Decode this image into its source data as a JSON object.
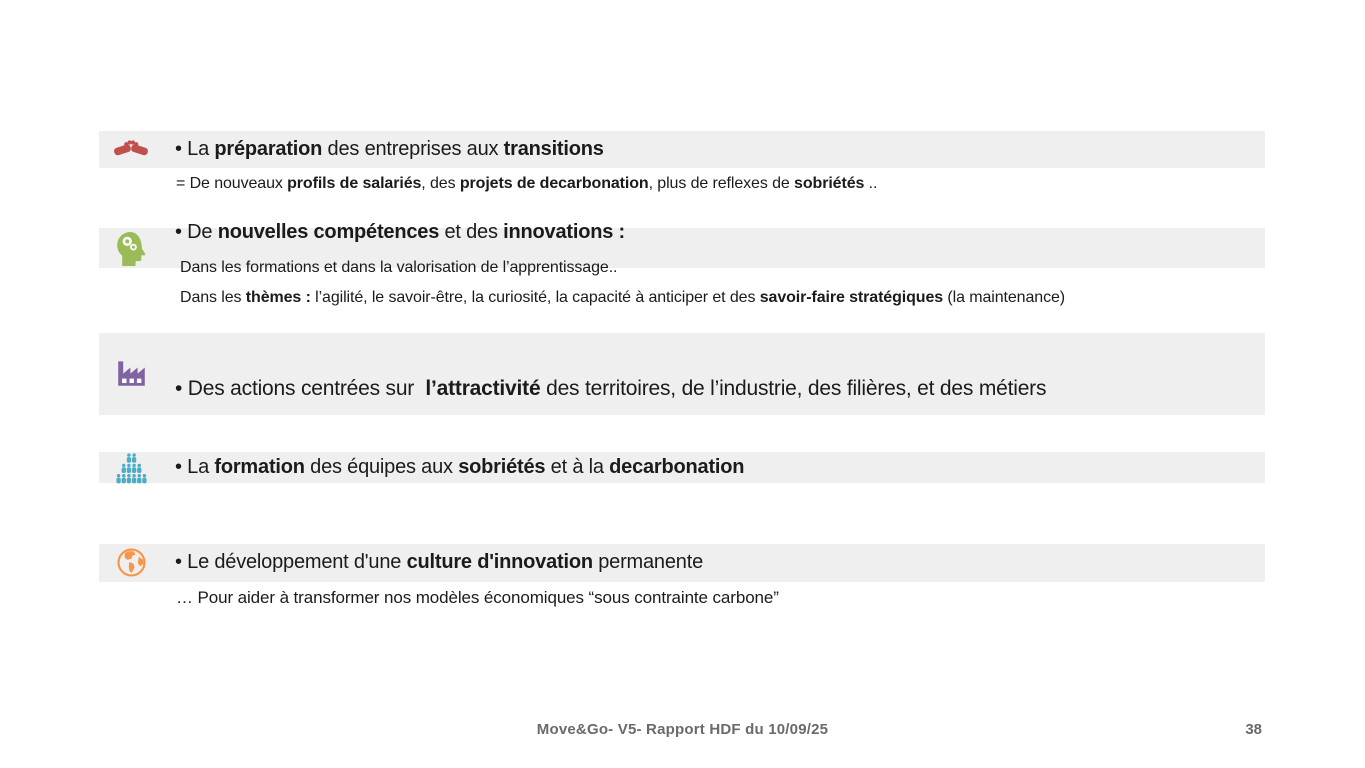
{
  "slide": {
    "background": "#ffffff",
    "band_color": "#efefef",
    "groups": [
      {
        "name": "preparation-transitions",
        "icon": "handshake-icon",
        "icon_color": "#c0504d",
        "heading": [
          {
            "t": "• La ",
            "b": false
          },
          {
            "t": "préparation",
            "b": true
          },
          {
            "t": " des entreprises aux ",
            "b": false
          },
          {
            "t": "transitions",
            "b": true
          }
        ],
        "sublines": {
          "line1": [
            {
              "t": "= De nouveaux ",
              "b": false
            },
            {
              "t": "profils de salariés",
              "b": true
            },
            {
              "t": ", des ",
              "b": false
            },
            {
              "t": "projets de decarbonation",
              "b": true
            },
            {
              "t": ", plus de reflexes de ",
              "b": false
            },
            {
              "t": "sobriétés",
              "b": true
            },
            {
              "t": " ..",
              "b": false
            }
          ]
        }
      },
      {
        "name": "competences-innovations",
        "icon": "head-gears-icon",
        "icon_color": "#9bbb59",
        "heading": [
          {
            "t": "• De ",
            "b": false
          },
          {
            "t": "nouvelles compétences",
            "b": true
          },
          {
            "t": " et des ",
            "b": false
          },
          {
            "t": "innovations :",
            "b": true
          }
        ],
        "sublines": {
          "line1": [
            {
              "t": "Dans les formations et dans la valorisation de l’apprentissage..",
              "b": false
            }
          ],
          "line2": [
            {
              "t": "Dans les ",
              "b": false
            },
            {
              "t": "thèmes :",
              "b": true
            },
            {
              "t": " l’agilité, le savoir-être, la curiosité, la capacité à anticiper et des ",
              "b": false
            },
            {
              "t": "savoir-faire stratégiques",
              "b": true
            },
            {
              "t": " (la maintenance)",
              "b": false
            }
          ]
        }
      },
      {
        "name": "attractivite-territoires",
        "icon": "factory-icon",
        "icon_color": "#8064a2",
        "heading": [
          {
            "t": "• Des actions centrées sur  ",
            "b": false
          },
          {
            "t": "l’attractivité",
            "b": true
          },
          {
            "t": " des territoires, de l’industrie, des filières, et des métiers",
            "b": false
          }
        ]
      },
      {
        "name": "formation-equipes",
        "icon": "crowd-icon",
        "icon_color": "#4bacc6",
        "heading": [
          {
            "t": "• La ",
            "b": false
          },
          {
            "t": "formation",
            "b": true
          },
          {
            "t": " des équipes aux ",
            "b": false
          },
          {
            "t": "sobriétés",
            "b": true
          },
          {
            "t": " et à la ",
            "b": false
          },
          {
            "t": "decarbonation",
            "b": true
          }
        ]
      },
      {
        "name": "culture-innovation",
        "icon": "globe-icon",
        "icon_color": "#f79646",
        "heading": [
          {
            "t": "• Le développement d'une ",
            "b": false
          },
          {
            "t": "culture d'innovation",
            "b": true
          },
          {
            "t": " permanente",
            "b": false
          }
        ],
        "sublines": {
          "line1": [
            {
              "t": "… Pour aider à transformer nos modèles économiques “sous contrainte carbone”",
              "b": false
            }
          ]
        }
      }
    ],
    "footer": {
      "caption": "Move&Go- V5- Rapport HDF du 10/09/25",
      "page_number": "38"
    }
  }
}
